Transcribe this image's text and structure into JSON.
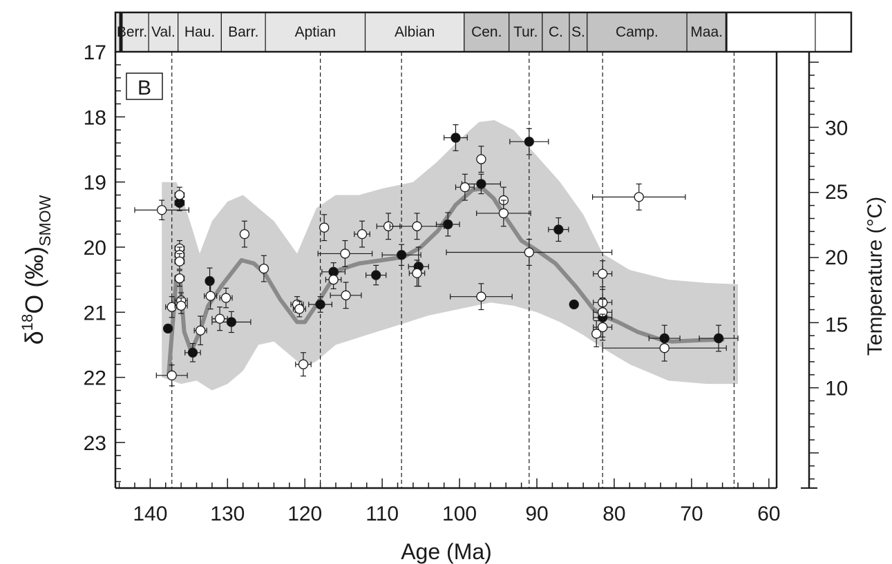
{
  "chart_data": {
    "type": "scatter",
    "panel_label": "B",
    "xlabel": "Age (Ma)",
    "ylabel": {
      "delta": "δ",
      "sup": "18",
      "main": "O (‰)",
      "sub": "SMOW"
    },
    "y2label": "Temperature (°C)",
    "xlim": [
      144.5,
      59
    ],
    "ylim": [
      17,
      23.7
    ],
    "y_inverted": true,
    "x_ticks": [
      140,
      130,
      120,
      110,
      100,
      90,
      80,
      70,
      60
    ],
    "x_tick_labels": [
      "140",
      "130",
      "120",
      "110",
      "100",
      "90",
      "80",
      "70",
      "60"
    ],
    "y_ticks": [
      17,
      18,
      19,
      20,
      21,
      22,
      23
    ],
    "y_tick_labels": [
      "17",
      "18",
      "19",
      "20",
      "21",
      "22",
      "23"
    ],
    "y2_ticks": [
      {
        "label": "30",
        "d18O": 18.16
      },
      {
        "label": "25",
        "d18O": 19.14
      },
      {
        "label": "20",
        "d18O": 20.15
      },
      {
        "label": "15",
        "d18O": 21.18
      },
      {
        "label": "10",
        "d18O": 22.16
      }
    ],
    "stages": [
      {
        "name": "Berr.",
        "start": 144.5,
        "end": 140.2,
        "shade": "#e6e6e6"
      },
      {
        "name": "Val.",
        "start": 140.2,
        "end": 136.4,
        "shade": "#e6e6e6"
      },
      {
        "name": "Hau.",
        "start": 136.4,
        "end": 130.8,
        "shade": "#e6e6e6"
      },
      {
        "name": "Barr.",
        "start": 130.8,
        "end": 125.1,
        "shade": "#e6e6e6"
      },
      {
        "name": "Aptian",
        "start": 125.1,
        "end": 112.2,
        "shade": "#e6e6e6"
      },
      {
        "name": "Albian",
        "start": 112.2,
        "end": 99.4,
        "shade": "#e6e6e6"
      },
      {
        "name": "Cen.",
        "start": 99.4,
        "end": 93.6,
        "shade": "#c3c3c3"
      },
      {
        "name": "Tur.",
        "start": 93.6,
        "end": 89.3,
        "shade": "#c3c3c3"
      },
      {
        "name": "C.",
        "start": 89.3,
        "end": 85.8,
        "shade": "#c3c3c3"
      },
      {
        "name": "S.",
        "start": 85.8,
        "end": 83.5,
        "shade": "#c3c3c3"
      },
      {
        "name": "Camp.",
        "start": 83.5,
        "end": 70.6,
        "shade": "#c3c3c3"
      },
      {
        "name": "Maa.",
        "start": 70.6,
        "end": 65.5,
        "shade": "#c3c3c3"
      },
      {
        "name": "",
        "start": 65.5,
        "end": 54.0,
        "shade": "#ffffff"
      }
    ],
    "reference_lines_x": [
      137.2,
      118.0,
      107.5,
      91.0,
      81.5,
      64.5
    ],
    "envelope_upper": [
      [
        138.5,
        19.0
      ],
      [
        136.6,
        19.0
      ],
      [
        135.7,
        19.3
      ],
      [
        134.6,
        19.7
      ],
      [
        133.6,
        20.1
      ],
      [
        132.0,
        19.6
      ],
      [
        130.0,
        19.3
      ],
      [
        128.0,
        19.2
      ],
      [
        126.0,
        19.4
      ],
      [
        124.0,
        19.6
      ],
      [
        121.0,
        20.1
      ],
      [
        118.5,
        19.4
      ],
      [
        116.0,
        19.2
      ],
      [
        113.0,
        19.2
      ],
      [
        110.0,
        19.1
      ],
      [
        106.0,
        19.0
      ],
      [
        103.0,
        18.7
      ],
      [
        100.0,
        18.35
      ],
      [
        97.5,
        18.08
      ],
      [
        95.5,
        18.05
      ],
      [
        93.0,
        18.2
      ],
      [
        90.0,
        18.6
      ],
      [
        87.0,
        19.0
      ],
      [
        84.0,
        19.5
      ],
      [
        81.5,
        20.1
      ],
      [
        78.0,
        20.35
      ],
      [
        73.0,
        20.5
      ],
      [
        68.0,
        20.55
      ],
      [
        64.0,
        20.57
      ]
    ],
    "envelope_lower": [
      [
        64.0,
        22.1
      ],
      [
        68.0,
        22.1
      ],
      [
        73.0,
        22.05
      ],
      [
        78.0,
        21.8
      ],
      [
        81.5,
        21.55
      ],
      [
        84.0,
        21.35
      ],
      [
        87.0,
        21.15
      ],
      [
        90.0,
        21.0
      ],
      [
        93.0,
        20.9
      ],
      [
        96.0,
        20.85
      ],
      [
        100.0,
        20.95
      ],
      [
        104.0,
        21.05
      ],
      [
        108.0,
        21.2
      ],
      [
        112.0,
        21.35
      ],
      [
        116.0,
        21.5
      ],
      [
        118.5,
        21.75
      ],
      [
        120.0,
        21.85
      ],
      [
        122.0,
        21.65
      ],
      [
        124.0,
        21.45
      ],
      [
        126.0,
        21.5
      ],
      [
        128.0,
        21.9
      ],
      [
        130.0,
        22.1
      ],
      [
        132.0,
        22.2
      ],
      [
        134.0,
        22.05
      ],
      [
        136.0,
        22.1
      ],
      [
        138.5,
        22.0
      ]
    ],
    "trend_line": [
      [
        137.6,
        21.95
      ],
      [
        136.6,
        20.45
      ],
      [
        136.1,
        20.55
      ],
      [
        135.6,
        21.3
      ],
      [
        134.7,
        21.6
      ],
      [
        133.6,
        21.3
      ],
      [
        132.5,
        20.9
      ],
      [
        130.8,
        20.6
      ],
      [
        128.2,
        20.2
      ],
      [
        126.6,
        20.25
      ],
      [
        125.2,
        20.4
      ],
      [
        123.2,
        20.8
      ],
      [
        121.0,
        21.15
      ],
      [
        120.0,
        21.15
      ],
      [
        118.3,
        20.85
      ],
      [
        117.0,
        20.6
      ],
      [
        115.6,
        20.35
      ],
      [
        113.0,
        20.25
      ],
      [
        110.0,
        20.2
      ],
      [
        107.2,
        20.15
      ],
      [
        105.0,
        20.0
      ],
      [
        102.8,
        19.75
      ],
      [
        100.5,
        19.35
      ],
      [
        98.3,
        19.12
      ],
      [
        97.0,
        19.1
      ],
      [
        95.6,
        19.25
      ],
      [
        94.0,
        19.55
      ],
      [
        92.0,
        19.9
      ],
      [
        90.0,
        20.05
      ],
      [
        87.6,
        20.25
      ],
      [
        85.0,
        20.6
      ],
      [
        82.7,
        20.95
      ],
      [
        81.5,
        21.05
      ],
      [
        79.5,
        21.15
      ],
      [
        77.0,
        21.3
      ],
      [
        74.0,
        21.42
      ],
      [
        72.5,
        21.45
      ],
      [
        69.0,
        21.43
      ],
      [
        66.0,
        21.42
      ]
    ],
    "series": [
      {
        "marker": "filled",
        "points": [
          {
            "x": 137.7,
            "y": 21.25,
            "xerr": 0.0,
            "yerr": 0.0
          },
          {
            "x": 136.2,
            "y": 19.32,
            "xerr": 0.6,
            "yerr": 0.12
          },
          {
            "x": 134.5,
            "y": 21.62,
            "xerr": 1.0,
            "yerr": 0.14
          },
          {
            "x": 132.3,
            "y": 20.52,
            "xerr": 0.0,
            "yerr": 0.2
          },
          {
            "x": 129.5,
            "y": 21.15,
            "xerr": 2.5,
            "yerr": 0.16
          },
          {
            "x": 118.0,
            "y": 20.88,
            "xerr": 1.5,
            "yerr": 0.12
          },
          {
            "x": 116.3,
            "y": 20.38,
            "xerr": 1.5,
            "yerr": 0.14
          },
          {
            "x": 110.8,
            "y": 20.43,
            "xerr": 1.3,
            "yerr": 0.15
          },
          {
            "x": 107.5,
            "y": 20.12,
            "xerr": 2.5,
            "yerr": 0.16
          },
          {
            "x": 105.3,
            "y": 20.3,
            "xerr": 1.3,
            "yerr": 0.3
          },
          {
            "x": 101.5,
            "y": 19.65,
            "xerr": 1.5,
            "yerr": 0.18
          },
          {
            "x": 100.5,
            "y": 18.32,
            "xerr": 1.5,
            "yerr": 0.2
          },
          {
            "x": 97.2,
            "y": 19.03,
            "xerr": 2.5,
            "yerr": 0.15
          },
          {
            "x": 91.0,
            "y": 18.38,
            "xerr": 2.5,
            "yerr": 0.2
          },
          {
            "x": 87.2,
            "y": 19.73,
            "xerr": 1.3,
            "yerr": 0.18
          },
          {
            "x": 85.2,
            "y": 20.88,
            "xerr": 0.0,
            "yerr": 0.0
          },
          {
            "x": 81.5,
            "y": 21.08,
            "xerr": 1.2,
            "yerr": 0.3
          },
          {
            "x": 73.5,
            "y": 21.4,
            "xerr": 2.0,
            "yerr": 0.2
          },
          {
            "x": 66.5,
            "y": 21.4,
            "xerr": 2.5,
            "yerr": 0.2
          }
        ]
      },
      {
        "marker": "open",
        "points": [
          {
            "x": 138.5,
            "y": 19.43,
            "xerr": 3.5,
            "yerr": 0.15
          },
          {
            "x": 137.2,
            "y": 20.92,
            "xerr": 0.8,
            "yerr": 0.16
          },
          {
            "x": 136.2,
            "y": 19.2,
            "xerr": 0.6,
            "yerr": 0.12
          },
          {
            "x": 136.2,
            "y": 20.02,
            "xerr": 0.6,
            "yerr": 0.12
          },
          {
            "x": 136.2,
            "y": 20.12,
            "xerr": 0.6,
            "yerr": 0.12
          },
          {
            "x": 136.2,
            "y": 20.22,
            "xerr": 0.6,
            "yerr": 0.12
          },
          {
            "x": 136.2,
            "y": 20.48,
            "xerr": 0.6,
            "yerr": 0.12
          },
          {
            "x": 136.0,
            "y": 20.82,
            "xerr": 0.8,
            "yerr": 0.12
          },
          {
            "x": 136.0,
            "y": 20.9,
            "xerr": 0.8,
            "yerr": 0.12
          },
          {
            "x": 137.2,
            "y": 21.97,
            "xerr": 2.0,
            "yerr": 0.16
          },
          {
            "x": 133.5,
            "y": 21.28,
            "xerr": 0.8,
            "yerr": 0.22
          },
          {
            "x": 132.2,
            "y": 20.75,
            "xerr": 0.8,
            "yerr": 0.2
          },
          {
            "x": 131.0,
            "y": 21.1,
            "xerr": 1.0,
            "yerr": 0.18
          },
          {
            "x": 130.2,
            "y": 20.78,
            "xerr": 0.8,
            "yerr": 0.15
          },
          {
            "x": 127.8,
            "y": 19.8,
            "xerr": 0.0,
            "yerr": 0.2
          },
          {
            "x": 125.3,
            "y": 20.33,
            "xerr": 0.0,
            "yerr": 0.2
          },
          {
            "x": 121.0,
            "y": 20.88,
            "xerr": 0.8,
            "yerr": 0.12
          },
          {
            "x": 120.7,
            "y": 20.95,
            "xerr": 0.8,
            "yerr": 0.12
          },
          {
            "x": 120.2,
            "y": 21.8,
            "xerr": 1.0,
            "yerr": 0.18
          },
          {
            "x": 117.5,
            "y": 19.7,
            "xerr": 0.0,
            "yerr": 0.2
          },
          {
            "x": 116.3,
            "y": 20.5,
            "xerr": 1.0,
            "yerr": 0.14
          },
          {
            "x": 114.8,
            "y": 20.1,
            "xerr": 3.5,
            "yerr": 0.2
          },
          {
            "x": 114.7,
            "y": 20.74,
            "xerr": 2.0,
            "yerr": 0.2
          },
          {
            "x": 112.6,
            "y": 19.8,
            "xerr": 1.0,
            "yerr": 0.2
          },
          {
            "x": 109.2,
            "y": 19.68,
            "xerr": 1.5,
            "yerr": 0.2
          },
          {
            "x": 105.5,
            "y": 19.68,
            "xerr": 3.5,
            "yerr": 0.2
          },
          {
            "x": 105.5,
            "y": 20.4,
            "xerr": 1.0,
            "yerr": 0.2
          },
          {
            "x": 99.3,
            "y": 19.08,
            "xerr": 1.2,
            "yerr": 0.2
          },
          {
            "x": 97.2,
            "y": 18.65,
            "xerr": 0.0,
            "yerr": 0.2
          },
          {
            "x": 97.2,
            "y": 20.76,
            "xerr": 4.0,
            "yerr": 0.2
          },
          {
            "x": 94.3,
            "y": 19.28,
            "xerr": 0.0,
            "yerr": 0.2
          },
          {
            "x": 94.3,
            "y": 19.48,
            "xerr": 3.5,
            "yerr": 0.2
          },
          {
            "x": 91.0,
            "y": 20.08,
            "xerr": 10.7,
            "yerr": 0.2
          },
          {
            "x": 81.5,
            "y": 20.41,
            "xerr": 1.2,
            "yerr": 0.2
          },
          {
            "x": 81.5,
            "y": 20.85,
            "xerr": 1.2,
            "yerr": 0.2
          },
          {
            "x": 81.5,
            "y": 21.0,
            "xerr": 1.2,
            "yerr": 0.2
          },
          {
            "x": 81.5,
            "y": 21.23,
            "xerr": 1.2,
            "yerr": 0.2
          },
          {
            "x": 82.3,
            "y": 21.33,
            "xerr": 0.0,
            "yerr": 0.2
          },
          {
            "x": 76.8,
            "y": 19.23,
            "xerr": 6.0,
            "yerr": 0.2
          },
          {
            "x": 73.5,
            "y": 21.55,
            "xerr": 8.0,
            "yerr": 0.2
          }
        ]
      }
    ],
    "colors": {
      "envelope": "#d0d0d0",
      "trend": "#8a8a8a",
      "axis": "#1a1a1a",
      "marker_filled": "#111111",
      "marker_open": "#ffffff"
    }
  }
}
